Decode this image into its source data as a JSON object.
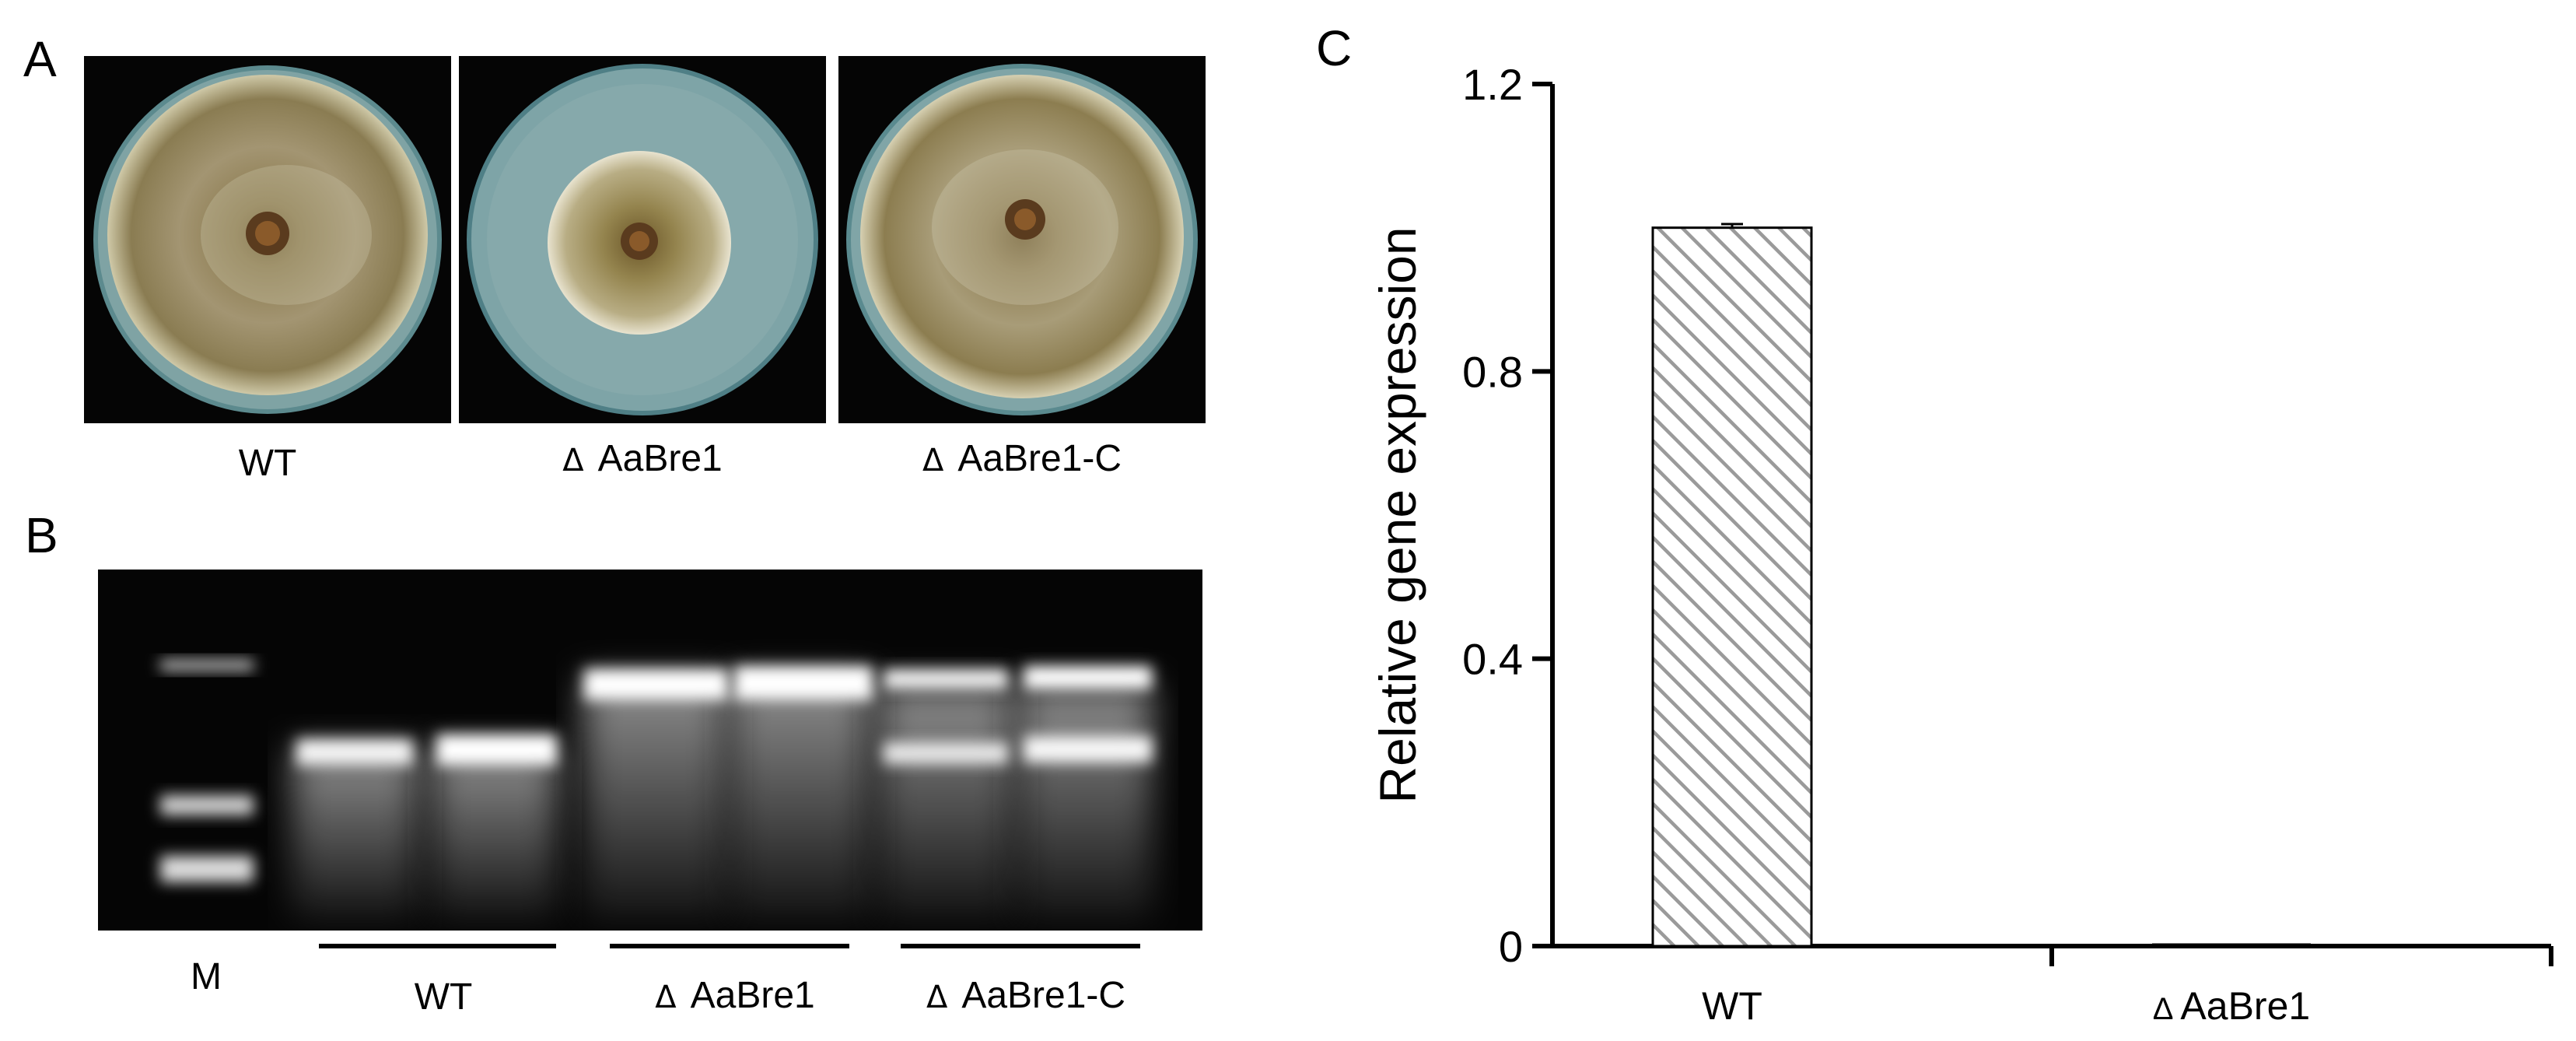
{
  "panels": {
    "a": {
      "letter": "A",
      "plates": [
        {
          "label": "WT",
          "mark": ""
        },
        {
          "label": "AaBre1",
          "mark": "Δ"
        },
        {
          "label": "AaBre1-C",
          "mark": "Δ"
        }
      ]
    },
    "b": {
      "letter": "B",
      "marker_label": "M",
      "groups": [
        {
          "label": "WT",
          "mark": ""
        },
        {
          "label": "AaBre1",
          "mark": "Δ"
        },
        {
          "label": "AaBre1-C",
          "mark": "Δ"
        }
      ]
    },
    "c": {
      "letter": "C"
    }
  },
  "chart_data": {
    "type": "bar",
    "title": "",
    "xlabel": "",
    "ylabel": "Relative gene expression",
    "categories": [
      "WT",
      "Δ AaBre1"
    ],
    "category_labels": [
      {
        "mark": "",
        "label": "WT"
      },
      {
        "mark": "Δ",
        "label": "AaBre1"
      }
    ],
    "values": [
      1.0,
      0.0
    ],
    "errors": [
      0.005,
      0.0
    ],
    "ylim": [
      0,
      1.2
    ],
    "yticks": [
      0,
      0.4,
      0.8,
      1.2
    ],
    "ytick_labels": [
      "0",
      "0.4",
      "0.8",
      "1.2"
    ],
    "bar_fill": "hatched",
    "hatch_color": "#9a9a9a",
    "grid": false
  }
}
